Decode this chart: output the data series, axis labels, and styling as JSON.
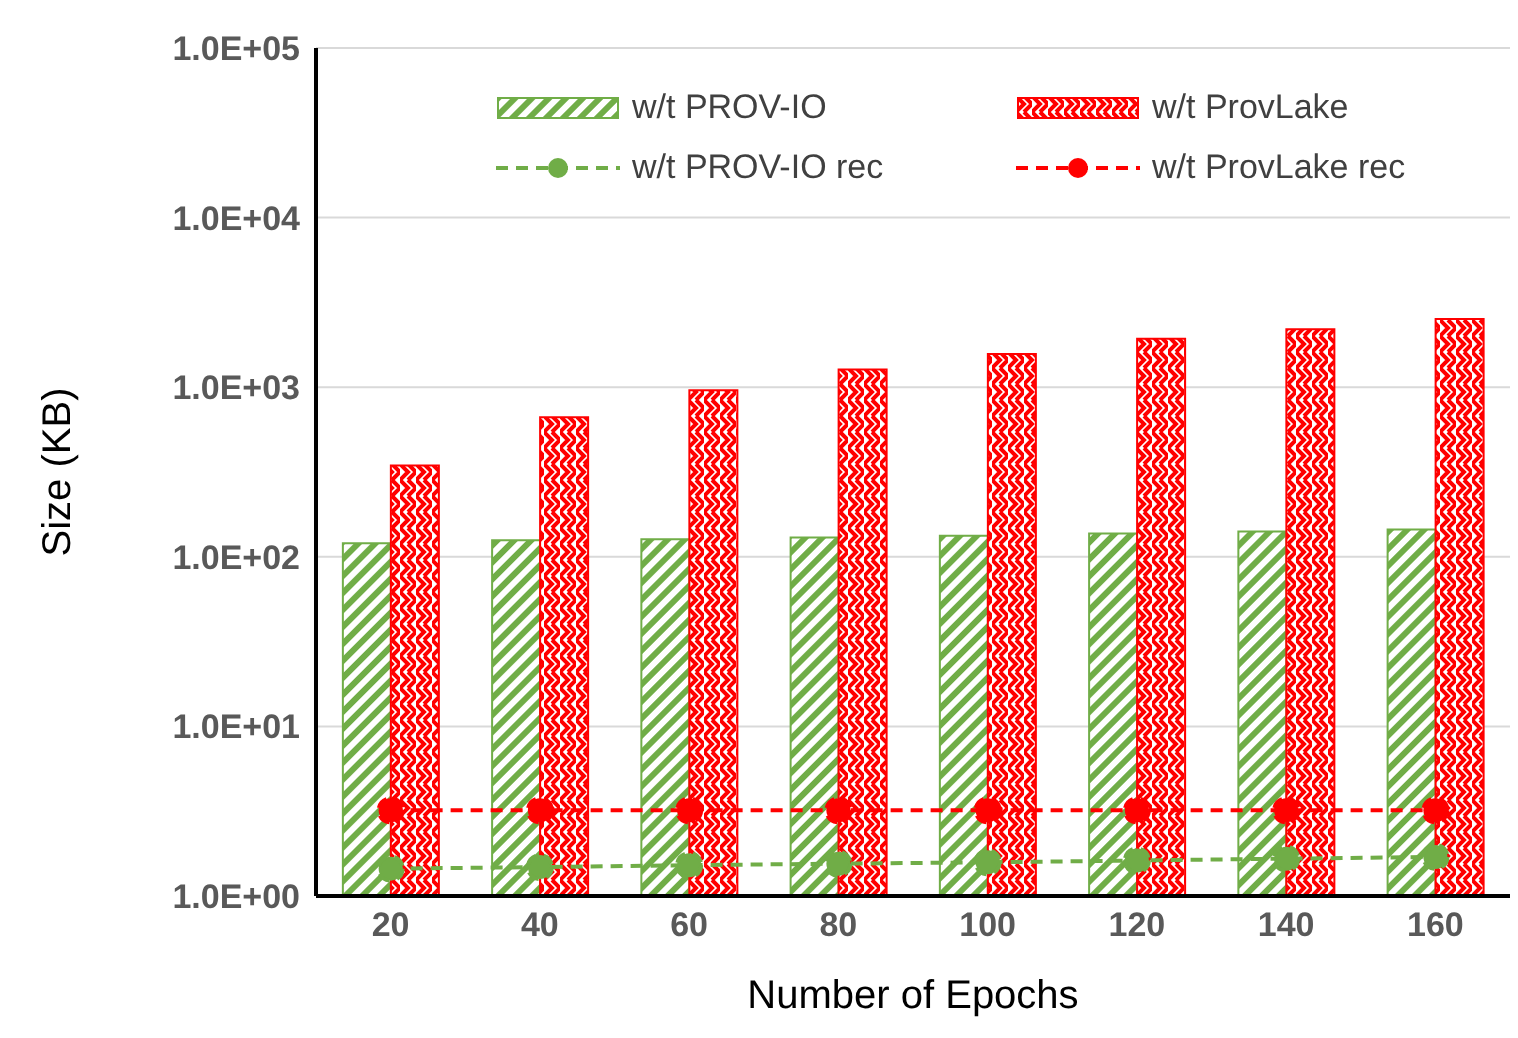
{
  "chart_data": {
    "type": "bar",
    "xlabel": "Number of Epochs",
    "ylabel": "Size (KB)",
    "categories": [
      "20",
      "40",
      "60",
      "80",
      "100",
      "120",
      "140",
      "160"
    ],
    "series": [
      {
        "name": "w/t PROV-IO",
        "color": "#70ad47",
        "values": [
          120,
          125,
          127,
          130,
          133,
          137,
          141,
          145
        ]
      },
      {
        "name": "w/t ProvLake",
        "color": "#ff0000",
        "values": [
          345,
          665,
          960,
          1270,
          1570,
          1930,
          2200,
          2520
        ]
      },
      {
        "name": "w/t PROV-IO rec",
        "type": "line",
        "color": "#70ad47",
        "line_style": "dashed",
        "marker": "circle",
        "values": [
          1.45,
          1.48,
          1.52,
          1.55,
          1.58,
          1.62,
          1.66,
          1.7
        ]
      },
      {
        "name": "w/t ProvLake rec",
        "type": "line",
        "color": "#ff0000",
        "line_style": "dashed",
        "marker": "circle",
        "values": [
          3.2,
          3.2,
          3.2,
          3.2,
          3.2,
          3.2,
          3.2,
          3.2
        ]
      }
    ],
    "log": "y",
    "ylim": [
      1,
      100000
    ],
    "yticks": [
      {
        "value": 1,
        "label": "1.0E+00"
      },
      {
        "value": 10,
        "label": "1.0E+01"
      },
      {
        "value": 100,
        "label": "1.0E+02"
      },
      {
        "value": 1000,
        "label": "1.0E+03"
      },
      {
        "value": 10000,
        "label": "1.0E+04"
      },
      {
        "value": 100000,
        "label": "1.0E+05"
      }
    ],
    "grid": "y",
    "legend": "top"
  }
}
